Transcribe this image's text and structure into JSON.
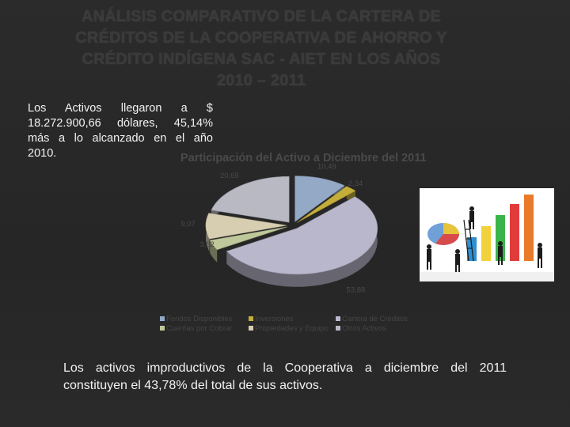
{
  "slide": {
    "title_lines": [
      "ANÁLISIS COMPARATIVO DE LA CARTERA DE",
      "CRÉDITOS DE LA COOPERATIVA DE AHORRO Y",
      "CRÉDITO INDÍGENA SAC - AIET EN LOS AÑOS",
      "2010 – 2011"
    ],
    "intro_lines": [
      "Los Activos llegaron a $",
      "18.272.900,66 dólares, 45,14%",
      "más a lo alcanzado en el año",
      "2010."
    ],
    "bottom_lines": [
      "Los activos improductivos de la Cooperativa a diciembre del 2011",
      "constituyen el 43,78% del total de sus activos."
    ]
  },
  "chart_data": {
    "type": "pie",
    "title": "Participación del Activo a Diciembre del 2011",
    "slices": [
      {
        "name": "Fondos Disponibles",
        "value": 10.49,
        "label": "10,49",
        "color": "#93a9c6"
      },
      {
        "name": "Inversiones",
        "value": 2.34,
        "label": "2,34",
        "color": "#c4ae3a"
      },
      {
        "name": "Cartera de Créditos",
        "value": 53.88,
        "label": "53,88",
        "color": "#b9b7cc"
      },
      {
        "name": "Cuentas por Cobrar",
        "value": 3.52,
        "label": "3,52",
        "color": "#bfc89a"
      },
      {
        "name": "Propiedades y Equipo",
        "value": 9.07,
        "label": "9,07",
        "color": "#d7cdb1"
      },
      {
        "name": "Otros Activos",
        "value": 20.69,
        "label": "20,69",
        "color": "#b9b9c3"
      }
    ],
    "legend_rows": [
      [
        "Fondos Disponibles",
        "Inversiones",
        "Cartera de Créditos"
      ],
      [
        "Cuentas por Cobrar",
        "Propiedades y Equipo",
        "Otros Activos"
      ]
    ],
    "legend_placement": "bottom",
    "style": "3d-exploded"
  },
  "colors": {
    "background": "#2a2a2a",
    "title_text": "#3a3a3a",
    "body_text": "#f2f2f2"
  },
  "illustration": {
    "icon": "business-people-building-bar-chart-icon"
  }
}
